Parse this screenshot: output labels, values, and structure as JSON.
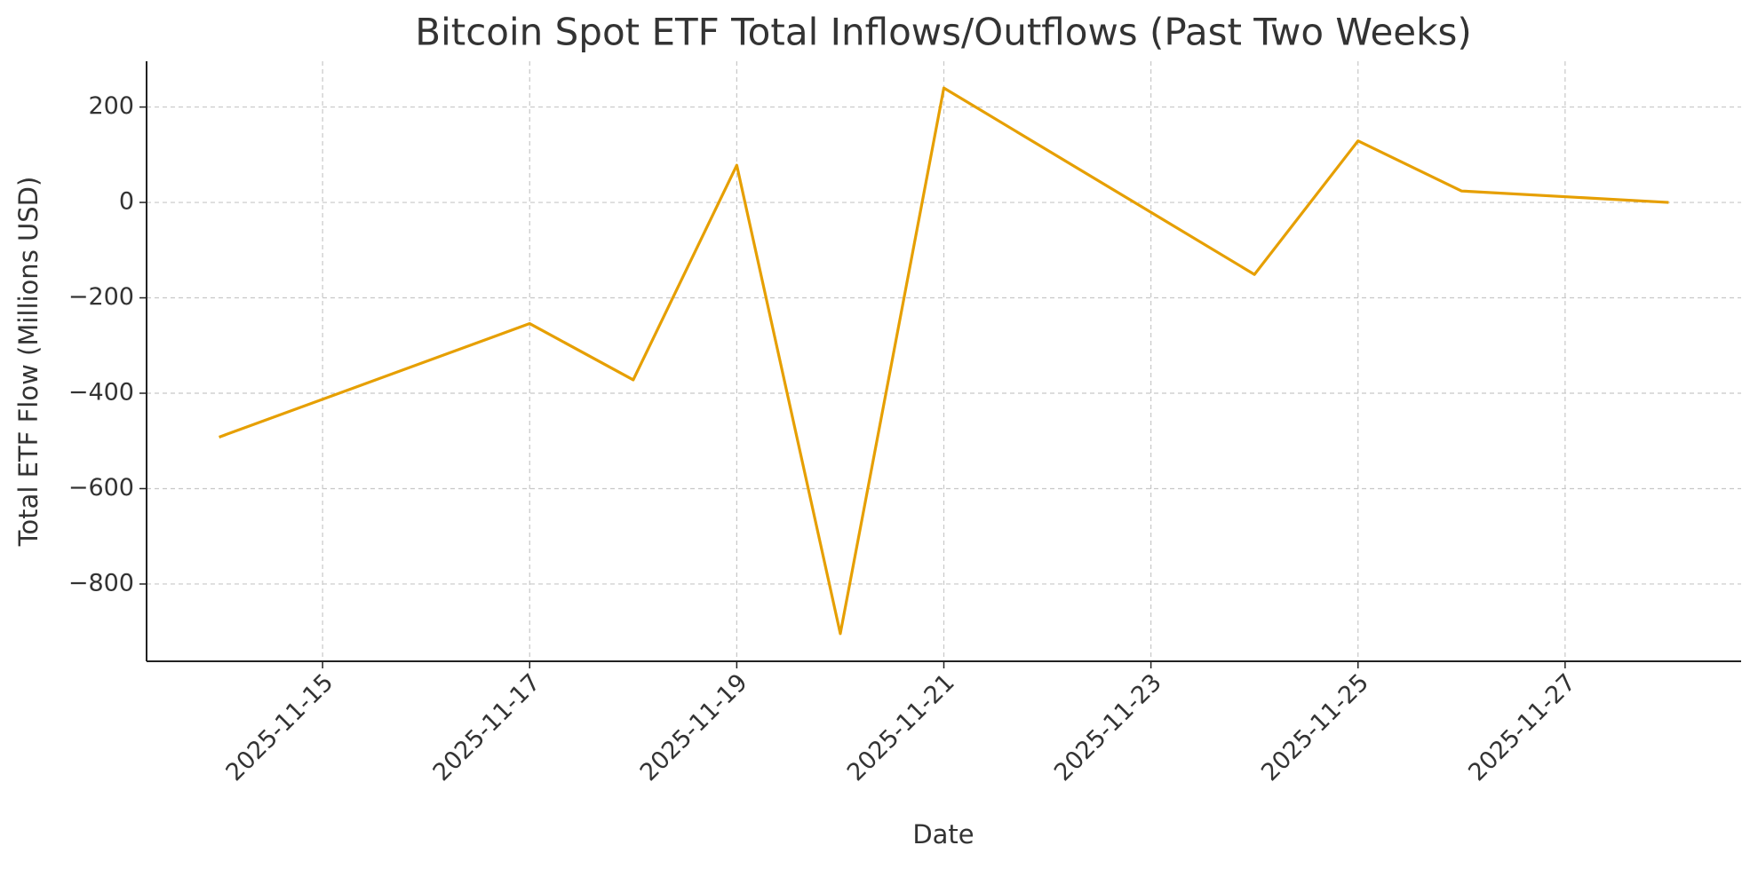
{
  "chart_data": {
    "type": "line",
    "title": "Bitcoin Spot ETF Total Inflows/Outflows (Past Two Weeks)",
    "xlabel": "Date",
    "ylabel": "Total ETF Flow (Millions USD)",
    "x": [
      "2025-11-14",
      "2025-11-17",
      "2025-11-18",
      "2025-11-19",
      "2025-11-20",
      "2025-11-21",
      "2025-11-24",
      "2025-11-25",
      "2025-11-26",
      "2025-11-28"
    ],
    "values": [
      -492,
      -254,
      -372,
      78,
      -904,
      240,
      -151,
      129,
      24,
      0
    ],
    "color": "#e69f00",
    "xlim": [
      "2025-11-13T07:12",
      "2025-11-28T16:48"
    ],
    "xticks": [
      "2025-11-15",
      "2025-11-17",
      "2025-11-19",
      "2025-11-21",
      "2025-11-23",
      "2025-11-25",
      "2025-11-27"
    ],
    "ylim": [
      -962,
      296
    ],
    "yticks": [
      {
        "value": -800,
        "label": "−800"
      },
      {
        "value": -600,
        "label": "−600"
      },
      {
        "value": -400,
        "label": "−400"
      },
      {
        "value": -200,
        "label": "−200"
      },
      0,
      200
    ],
    "grid": true
  }
}
